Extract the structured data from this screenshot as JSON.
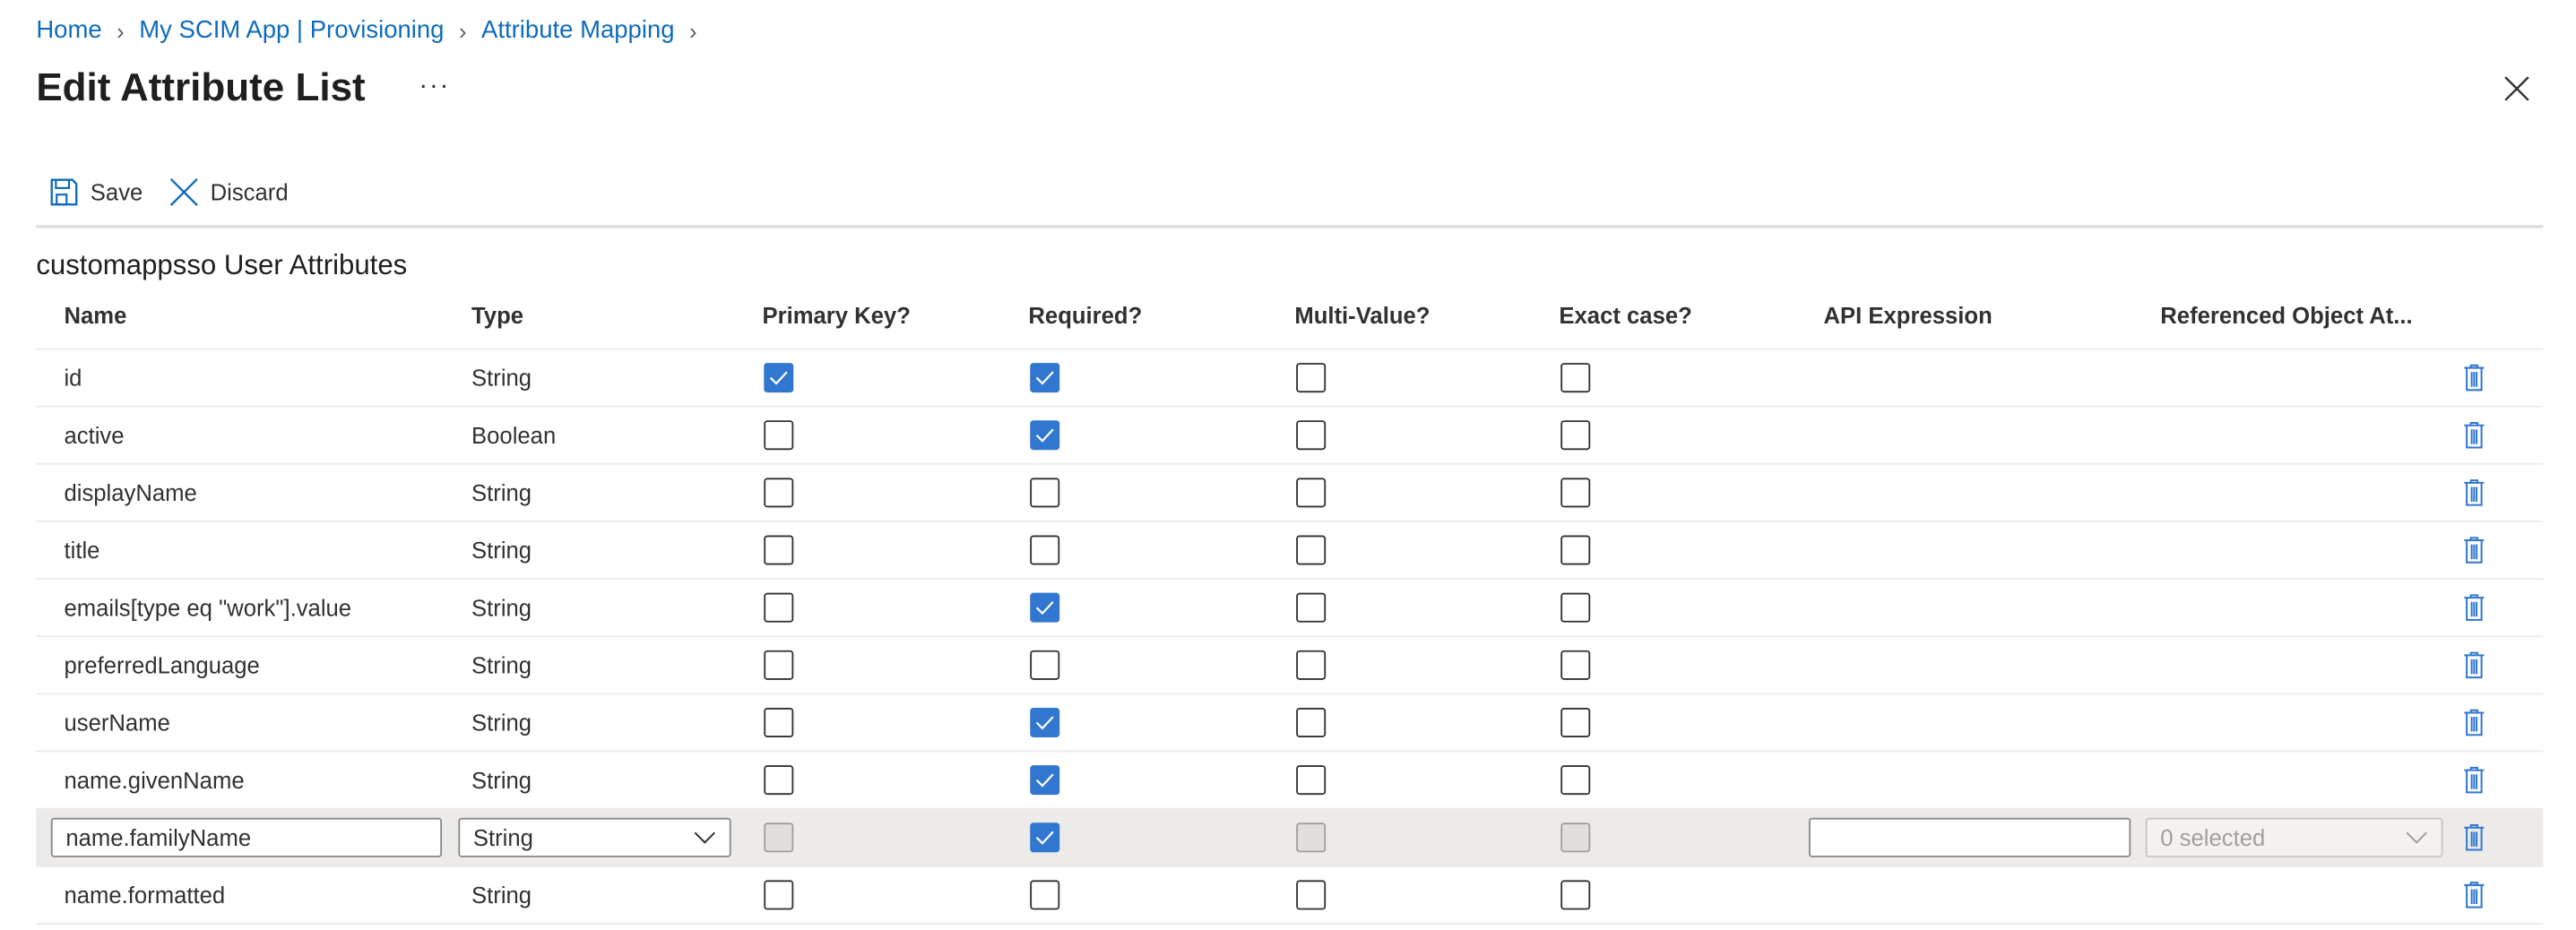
{
  "breadcrumb": [
    {
      "label": "Home"
    },
    {
      "label": "My SCIM App | Provisioning"
    },
    {
      "label": "Attribute Mapping"
    }
  ],
  "header": {
    "title": "Edit Attribute List",
    "more_label": "···"
  },
  "toolbar": {
    "save_label": "Save",
    "discard_label": "Discard"
  },
  "section_title": "customappsso User Attributes",
  "colors": {
    "accent": "#3277cf",
    "link": "#0f6cbd",
    "edit_row_bg": "#edebe9"
  },
  "table": {
    "columns": [
      "Name",
      "Type",
      "Primary Key?",
      "Required?",
      "Multi-Value?",
      "Exact case?",
      "API Expression",
      "Referenced Object At..."
    ],
    "rows": [
      {
        "name": "id",
        "type": "String",
        "primary_key": true,
        "required": true,
        "multi_value": false,
        "exact_case": false
      },
      {
        "name": "active",
        "type": "Boolean",
        "primary_key": false,
        "required": true,
        "multi_value": false,
        "exact_case": false
      },
      {
        "name": "displayName",
        "type": "String",
        "primary_key": false,
        "required": false,
        "multi_value": false,
        "exact_case": false
      },
      {
        "name": "title",
        "type": "String",
        "primary_key": false,
        "required": false,
        "multi_value": false,
        "exact_case": false
      },
      {
        "name": "emails[type eq \"work\"].value",
        "type": "String",
        "primary_key": false,
        "required": true,
        "multi_value": false,
        "exact_case": false
      },
      {
        "name": "preferredLanguage",
        "type": "String",
        "primary_key": false,
        "required": false,
        "multi_value": false,
        "exact_case": false
      },
      {
        "name": "userName",
        "type": "String",
        "primary_key": false,
        "required": true,
        "multi_value": false,
        "exact_case": false
      },
      {
        "name": "name.givenName",
        "type": "String",
        "primary_key": false,
        "required": true,
        "multi_value": false,
        "exact_case": false
      },
      {
        "name": "name.familyName",
        "type": "String",
        "primary_key": false,
        "required": true,
        "multi_value": false,
        "exact_case": false,
        "editing": true,
        "api_expression": "",
        "referenced_object": "0 selected"
      },
      {
        "name": "name.formatted",
        "type": "String",
        "primary_key": false,
        "required": false,
        "multi_value": false,
        "exact_case": false
      }
    ]
  }
}
